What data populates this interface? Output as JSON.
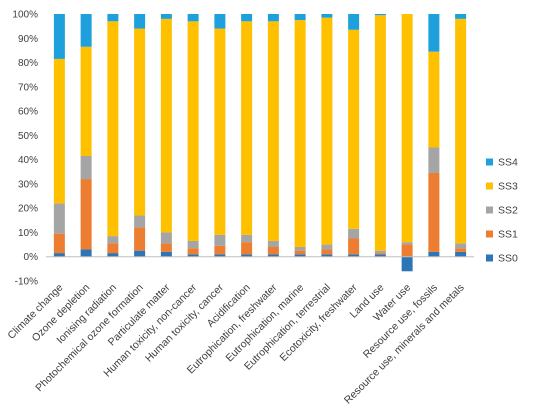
{
  "chart_data": {
    "type": "bar",
    "stacked": true,
    "percent_stacked": true,
    "title": "",
    "xlabel": "",
    "ylabel": "",
    "ylim": [
      -10,
      100
    ],
    "yticks": [
      -10,
      0,
      10,
      20,
      30,
      40,
      50,
      60,
      70,
      80,
      90,
      100
    ],
    "ytick_format": "percent",
    "grid": false,
    "legend_position": "right",
    "categories": [
      "Climate change",
      "Ozone depletion",
      "Ionising radiation",
      "Photochemical ozone formation",
      "Particulate matter",
      "Human toxicity, non-cancer",
      "Human toxicity, cancer",
      "Acidification",
      "Eutrophication, freshwater",
      "Eutrophication, marine",
      "Eutrophication, terrestrial",
      "Ecotoxicity, freshwater",
      "Land use",
      "Water use",
      "Resource use, fossils",
      "Resource use, minerals and metals"
    ],
    "series": [
      {
        "name": "SS0",
        "color": "#2E75B6",
        "values": [
          1.5,
          3,
          1.5,
          2.5,
          2,
          1,
          1,
          1,
          1,
          1,
          1,
          1,
          1,
          -6,
          2,
          2
        ]
      },
      {
        "name": "SS1",
        "color": "#ED7D31",
        "values": [
          8,
          29,
          4,
          9.5,
          3.5,
          2.5,
          3.5,
          5,
          3,
          1.5,
          2,
          6.5,
          0.5,
          5,
          32.5,
          1.5
        ]
      },
      {
        "name": "SS2",
        "color": "#A5A5A5",
        "values": [
          12.5,
          9.5,
          3,
          5,
          4.5,
          3,
          4.5,
          3,
          2.5,
          1.5,
          2,
          4,
          1,
          1,
          10.5,
          2
        ]
      },
      {
        "name": "SS3",
        "color": "#FFC000",
        "values": [
          59.5,
          45,
          88.5,
          77,
          88,
          90.5,
          85,
          88,
          90.5,
          93.5,
          93.5,
          82,
          97,
          94,
          39.5,
          92.5
        ]
      },
      {
        "name": "SS4",
        "color": "#1EA0DC",
        "values": [
          18.5,
          13.5,
          3,
          6,
          2,
          3,
          6,
          3,
          3,
          2.5,
          1.5,
          6.5,
          0.5,
          0,
          15.5,
          2
        ]
      }
    ],
    "legend_order": [
      "SS4",
      "SS3",
      "SS2",
      "SS1",
      "SS0"
    ],
    "axis_color": "#BFBFBF",
    "text_color": "#404040"
  }
}
